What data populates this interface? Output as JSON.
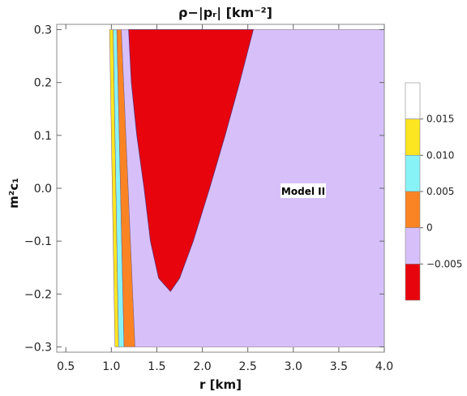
{
  "chart_data": {
    "type": "contour",
    "title": "ρ−|pᵣ| [km⁻²]",
    "xlabel": "r [km]",
    "ylabel": "m²c₁",
    "xlim": [
      0.4,
      4.0
    ],
    "ylim": [
      -0.31,
      0.31
    ],
    "x_ticks": [
      "0.5",
      "1.0",
      "1.5",
      "2.0",
      "2.5",
      "3.0",
      "3.5",
      "4.0"
    ],
    "y_ticks": [
      "0.3",
      "0.2",
      "0.1",
      "0.0",
      "−0.1",
      "−0.2",
      "−0.3"
    ],
    "annotation": "Model II",
    "legend": {
      "placement": "right",
      "levels": [
        {
          "label": "0.015",
          "color": "#ffffff"
        },
        {
          "label": "0.010",
          "color": "#fce521"
        },
        {
          "label": "0.005",
          "color": "#88f3f7"
        },
        {
          "label": "0",
          "color": "#fa8424"
        },
        {
          "label": "−0.005",
          "color": "#d7c0fa"
        },
        {
          "label": "",
          "color": "#e8040c"
        }
      ]
    },
    "regions": [
      {
        "color": "#fce521",
        "boundary_left": [
          [
            0.98,
            0.3
          ],
          [
            1.04,
            -0.3
          ]
        ],
        "boundary_right": [
          [
            1.02,
            0.3
          ],
          [
            1.08,
            -0.3
          ]
        ]
      },
      {
        "color": "#88f3f7",
        "boundary_left": [
          [
            1.02,
            0.3
          ],
          [
            1.08,
            -0.3
          ]
        ],
        "boundary_right": [
          [
            1.06,
            0.3
          ],
          [
            1.14,
            -0.3
          ]
        ]
      },
      {
        "color": "#fa8424",
        "boundary_left": [
          [
            1.06,
            0.3
          ],
          [
            1.14,
            -0.3
          ]
        ],
        "boundary_right": [
          [
            1.11,
            0.3
          ],
          [
            1.26,
            -0.3
          ]
        ]
      },
      {
        "color": "#d7c0fa",
        "boundary_left": [
          [
            1.11,
            0.3
          ],
          [
            1.26,
            -0.3
          ]
        ],
        "boundary_right": [
          [
            4.0,
            0.3
          ],
          [
            4.0,
            -0.3
          ]
        ]
      },
      {
        "color": "#e8040c",
        "outline": [
          [
            1.19,
            0.3
          ],
          [
            1.22,
            0.2
          ],
          [
            1.28,
            0.1
          ],
          [
            1.36,
            0.0
          ],
          [
            1.43,
            -0.1
          ],
          [
            1.52,
            -0.17
          ],
          [
            1.65,
            -0.195
          ],
          [
            1.75,
            -0.17
          ],
          [
            1.9,
            -0.1
          ],
          [
            2.08,
            0.0
          ],
          [
            2.25,
            0.1
          ],
          [
            2.41,
            0.2
          ],
          [
            2.56,
            0.3
          ]
        ]
      }
    ]
  }
}
